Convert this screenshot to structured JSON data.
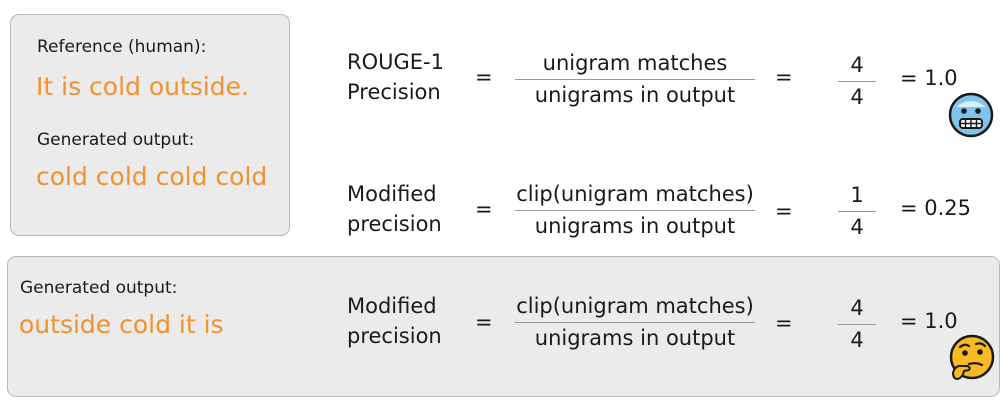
{
  "left_panel": {
    "reference_label": "Reference (human):",
    "reference_text": "It is cold outside.",
    "generated_label": "Generated output:",
    "generated_text": "cold cold cold cold"
  },
  "bottom_panel": {
    "generated_label": "Generated output:",
    "generated_text": "outside cold it is"
  },
  "rows": [
    {
      "metric_line1": "ROUGE-1",
      "metric_line2": "Precision",
      "equals1": "=",
      "numerator": "unigram matches",
      "denominator": "unigrams in output",
      "equals2": "=",
      "value_num": "4",
      "value_den": "4",
      "result": "= 1.0",
      "emoji": "cold-face-icon"
    },
    {
      "metric_line1": "Modified",
      "metric_line2": "precision",
      "equals1": "=",
      "numerator": "clip(unigram matches)",
      "denominator": "unigrams in output",
      "equals2": "=",
      "value_num": "1",
      "value_den": "4",
      "result": "= 0.25"
    },
    {
      "metric_line1": "Modified",
      "metric_line2": "precision",
      "equals1": "=",
      "numerator": "clip(unigram matches)",
      "denominator": "unigrams in output",
      "equals2": "=",
      "value_num": "4",
      "value_den": "4",
      "result": "= 1.0",
      "emoji": "thinking-face-icon"
    }
  ],
  "colors": {
    "highlight": "#f0922e",
    "panel_bg": "#ebebeb",
    "panel_border": "#b8b8b8"
  }
}
